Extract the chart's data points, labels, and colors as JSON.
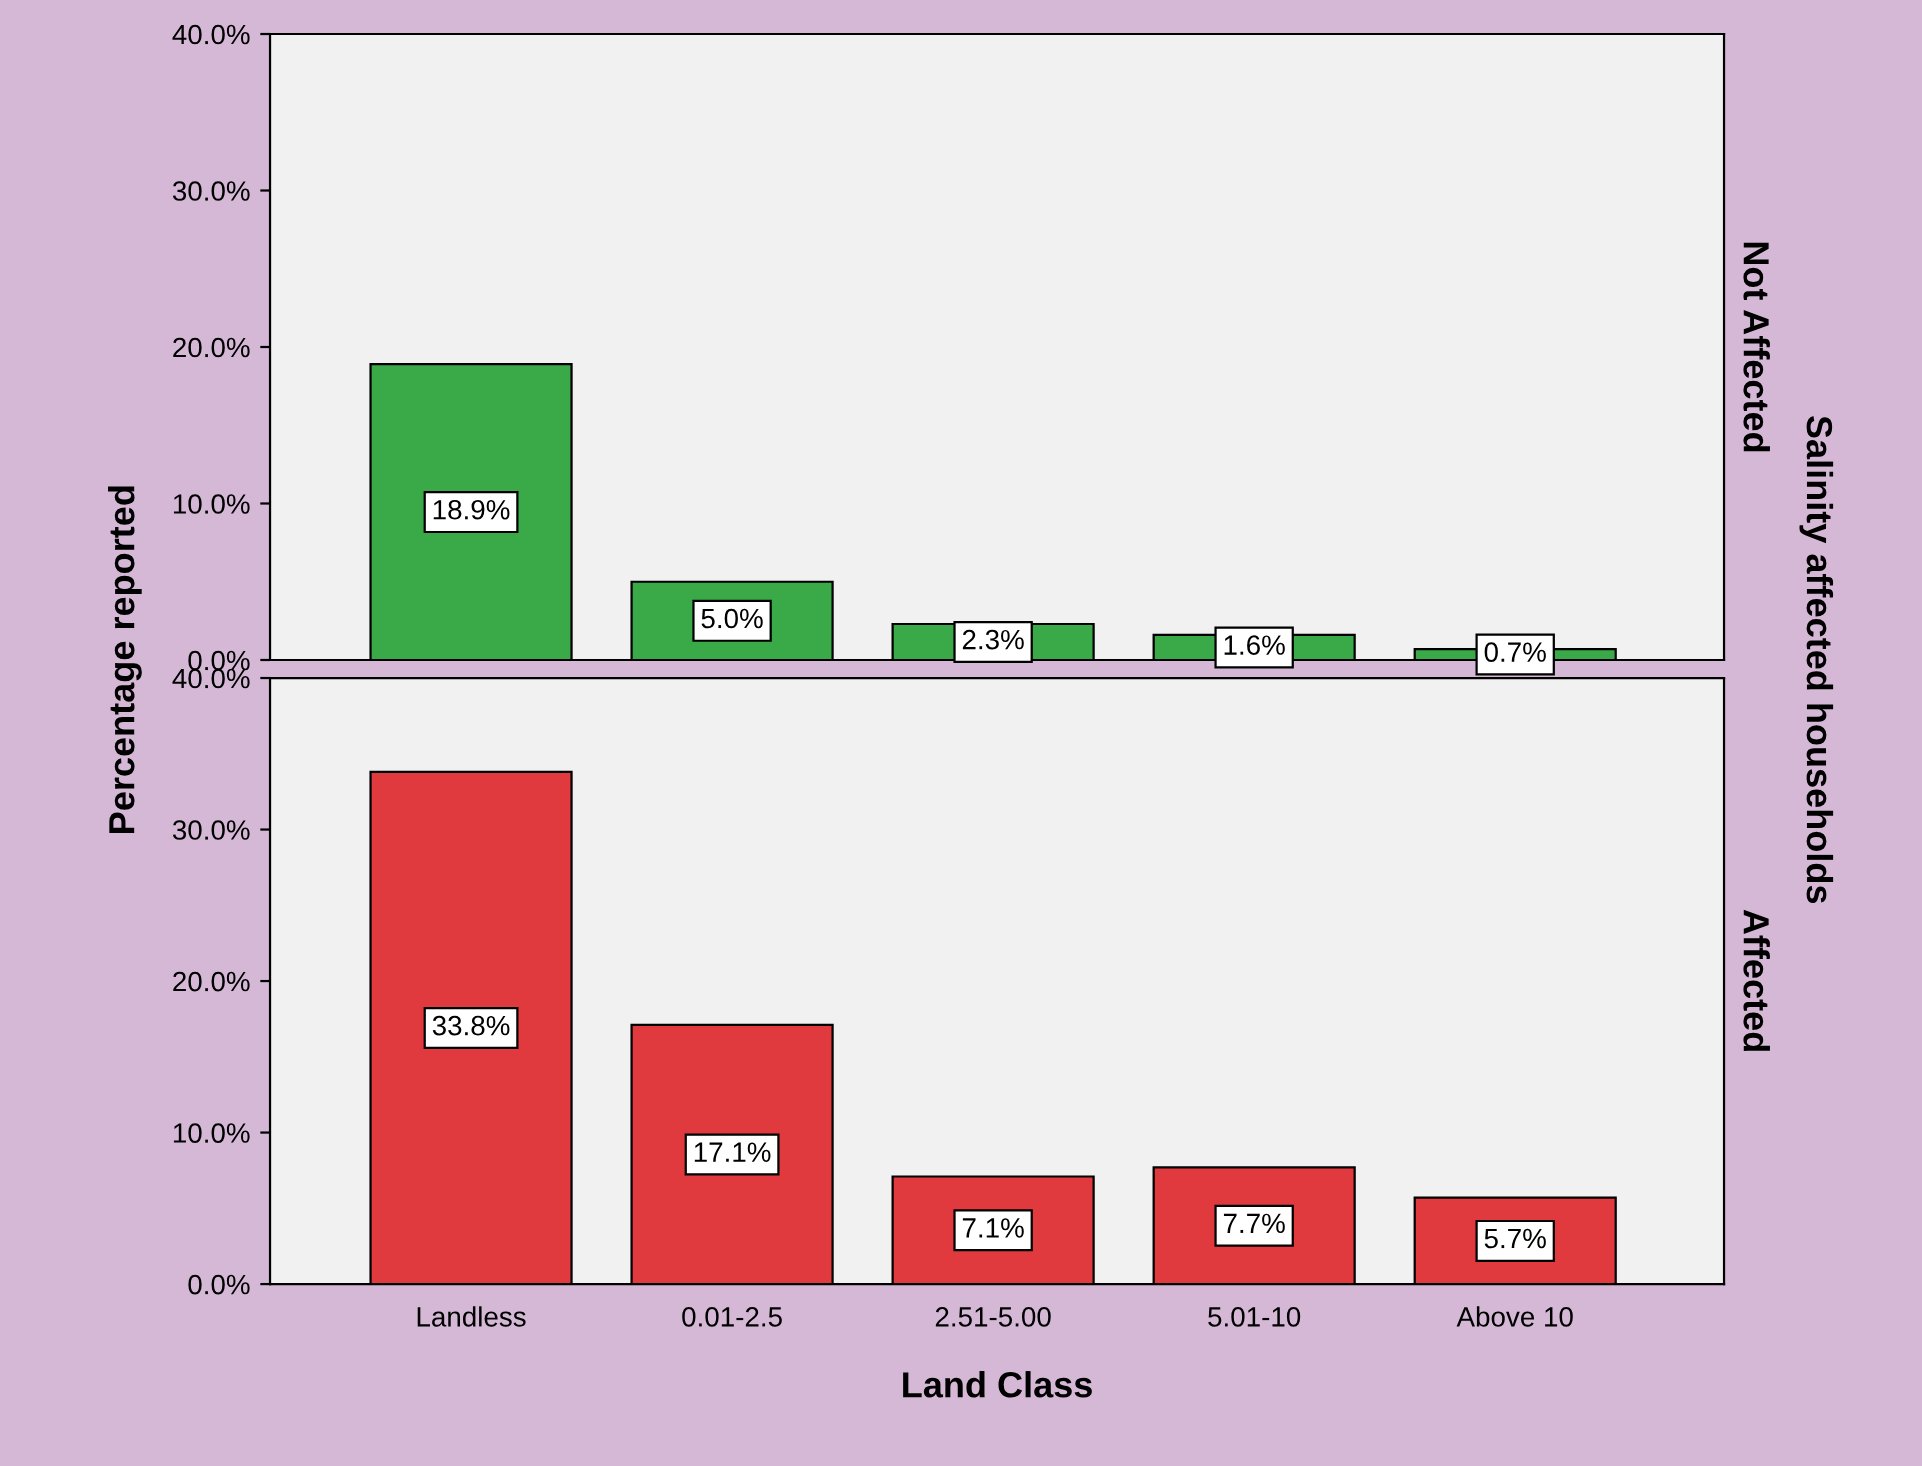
{
  "chart_data": [
    {
      "type": "bar",
      "categories": [
        null,
        null,
        null,
        null,
        null
      ],
      "ylabel": "Percentage reported",
      "y2label": "Not Affected",
      "annotations": [
        "Salinity affected households"
      ],
      "series": [
        {
          "color": "#3aaa48",
          "values": [
            18.9,
            5.0,
            2.3,
            1.6,
            0.7
          ],
          "value_labels": [
            "18.9%",
            "5.0%",
            "2.3%",
            "1.6%",
            "0.7%"
          ]
        }
      ],
      "ylim": [
        0,
        40
      ],
      "yticks": [
        {
          "value": 0,
          "label": "0.0%"
        },
        {
          "value": 10,
          "label": "10.0%"
        },
        {
          "value": 20,
          "label": "20.0%"
        },
        {
          "value": 30,
          "label": "30.0%"
        },
        {
          "value": 40,
          "label": "40.0%"
        }
      ],
      "tick_labels": "y",
      "grid": false,
      "legend": false
    },
    {
      "type": "bar",
      "categories": [
        "Landless",
        "0.01-2.5",
        "2.51-5.00",
        "5.01-10",
        "Above 10"
      ],
      "xlabel": "Land Class",
      "y2label": "Affected",
      "series": [
        {
          "color": "#e03a3e",
          "values": [
            33.8,
            17.1,
            7.1,
            7.7,
            5.7
          ],
          "value_labels": [
            "33.8%",
            "17.1%",
            "7.1%",
            "7.7%",
            "5.7%"
          ]
        }
      ],
      "ylim": [
        0,
        40
      ],
      "yticks": [
        {
          "value": 0,
          "label": "0.0%"
        },
        {
          "value": 10,
          "label": "10.0%"
        },
        {
          "value": 20,
          "label": "20.0%"
        },
        {
          "value": 30,
          "label": "30.0%"
        },
        {
          "value": 40,
          "label": "40.0%"
        }
      ],
      "grid": false,
      "legend": false
    }
  ]
}
